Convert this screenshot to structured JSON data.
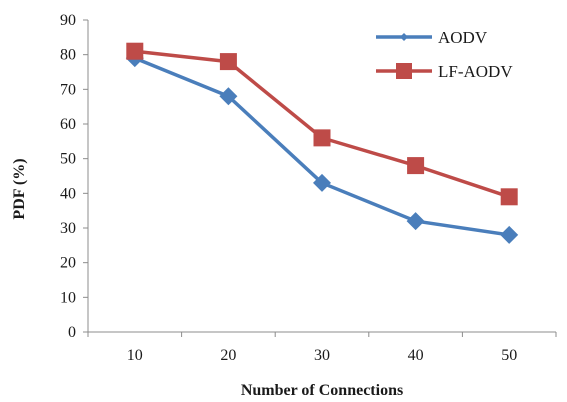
{
  "chart_data": {
    "type": "line",
    "title": "",
    "xlabel": "Number of Connections",
    "ylabel": "PDF (%)",
    "x": [
      10,
      20,
      30,
      40,
      50
    ],
    "categories": [
      "10",
      "20",
      "30",
      "40",
      "50"
    ],
    "ylim": [
      0,
      90
    ],
    "yticks": [
      0,
      10,
      20,
      30,
      40,
      50,
      60,
      70,
      80,
      90
    ],
    "ytick_labels": [
      "0",
      "10",
      "20",
      "30",
      "40",
      "50",
      "60",
      "70",
      "80",
      "90"
    ],
    "grid": false,
    "legend_position": "top-right",
    "series": [
      {
        "name": "AODV",
        "values": [
          79,
          68,
          43,
          32,
          28
        ],
        "color": "#4a7ebb",
        "marker": "diamond"
      },
      {
        "name": "LF-AODV",
        "values": [
          81,
          78,
          56,
          48,
          39
        ],
        "color": "#be4b48",
        "marker": "square"
      }
    ]
  }
}
